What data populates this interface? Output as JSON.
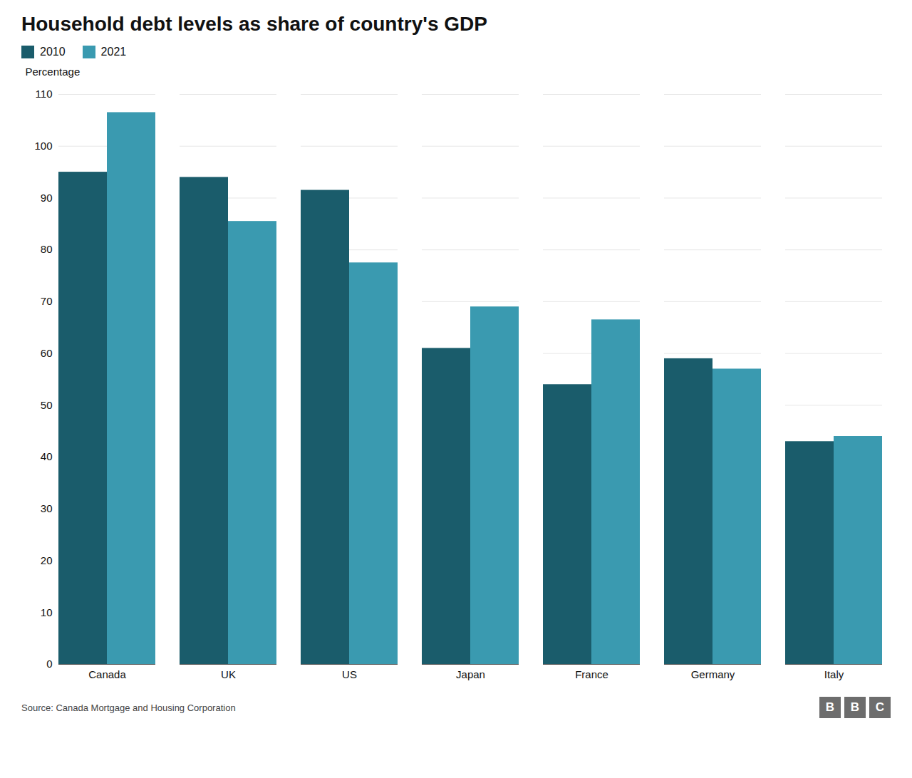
{
  "chart_data": {
    "type": "bar",
    "title": "Household debt levels as share of country's GDP",
    "ylabel": "Percentage",
    "source": "Source: Canada Mortgage and Housing Corporation",
    "logo": [
      "B",
      "B",
      "C"
    ],
    "categories": [
      "Canada",
      "UK",
      "US",
      "Japan",
      "France",
      "Germany",
      "Italy"
    ],
    "series": [
      {
        "name": "2010",
        "color": "#1a5c6b",
        "values": [
          95,
          94,
          91.5,
          61,
          54,
          59,
          43
        ]
      },
      {
        "name": "2021",
        "color": "#3a9ab0",
        "values": [
          106.5,
          85.5,
          77.5,
          69,
          66.5,
          57,
          44
        ]
      }
    ],
    "ylim": [
      0,
      110
    ],
    "yticks": [
      0,
      10,
      20,
      30,
      40,
      50,
      60,
      70,
      80,
      90,
      100,
      110
    ],
    "grid": true,
    "legend": "upper left"
  }
}
